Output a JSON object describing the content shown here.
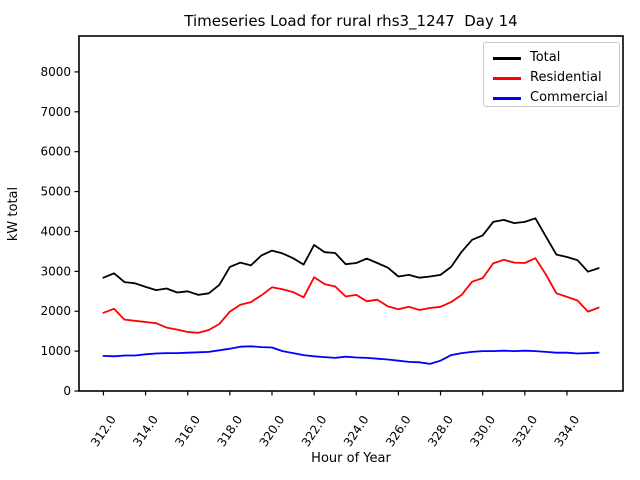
{
  "chart_data": {
    "type": "line",
    "title": "Timeseries Load for rural rhs3_1247  Day 14",
    "xlabel": "Hour of Year",
    "ylabel": "kW total",
    "xlim": [
      310.84,
      336.66
    ],
    "ylim": [
      0,
      8900
    ],
    "grid": false,
    "legend_position": "upper right",
    "xtick_values": [
      312,
      314,
      316,
      318,
      320,
      322,
      324,
      326,
      328,
      330,
      332,
      334
    ],
    "xtick_labels": [
      "312.0",
      "314.0",
      "316.0",
      "318.0",
      "320.0",
      "322.0",
      "324.0",
      "326.0",
      "328.0",
      "330.0",
      "332.0",
      "334.0"
    ],
    "ytick_values": [
      0,
      1000,
      2000,
      3000,
      4000,
      5000,
      6000,
      7000,
      8000
    ],
    "ytick_labels": [
      "0",
      "1000",
      "2000",
      "3000",
      "4000",
      "5000",
      "6000",
      "7000",
      "8000"
    ],
    "x": [
      312.0,
      312.5,
      313.0,
      313.5,
      314.0,
      314.5,
      315.0,
      315.5,
      316.0,
      316.5,
      317.0,
      317.5,
      318.0,
      318.5,
      319.0,
      319.5,
      320.0,
      320.5,
      321.0,
      321.5,
      322.0,
      322.5,
      323.0,
      323.5,
      324.0,
      324.5,
      325.0,
      325.5,
      326.0,
      326.5,
      327.0,
      327.5,
      328.0,
      328.5,
      329.0,
      329.5,
      330.0,
      330.5,
      331.0,
      331.5,
      332.0,
      332.5,
      333.0,
      333.5,
      334.0,
      334.5,
      335.0,
      335.5
    ],
    "series": [
      {
        "name": "Total",
        "color": "#000000",
        "values": [
          2840,
          2950,
          2730,
          2700,
          2610,
          2530,
          2570,
          2470,
          2500,
          2410,
          2450,
          2660,
          3110,
          3220,
          3150,
          3400,
          3520,
          3450,
          3330,
          3170,
          3660,
          3480,
          3460,
          3180,
          3210,
          3320,
          3210,
          3090,
          2870,
          2910,
          2840,
          2870,
          2910,
          3110,
          3490,
          3790,
          3900,
          4240,
          4290,
          4210,
          4240,
          4330,
          3870,
          3420,
          3360,
          3280,
          2990,
          3080
        ]
      },
      {
        "name": "Residential",
        "color": "#ff0000",
        "values": [
          1960,
          2060,
          1790,
          1760,
          1730,
          1700,
          1590,
          1540,
          1480,
          1460,
          1530,
          1680,
          1990,
          2160,
          2230,
          2400,
          2600,
          2550,
          2480,
          2350,
          2850,
          2680,
          2620,
          2370,
          2410,
          2250,
          2290,
          2120,
          2050,
          2110,
          2030,
          2080,
          2110,
          2230,
          2410,
          2740,
          2830,
          3200,
          3290,
          3220,
          3210,
          3330,
          2920,
          2450,
          2360,
          2270,
          1990,
          2090
        ]
      },
      {
        "name": "Commercial",
        "color": "#0000ff",
        "values": [
          880,
          870,
          890,
          890,
          920,
          940,
          950,
          950,
          960,
          970,
          980,
          1020,
          1060,
          1110,
          1120,
          1100,
          1090,
          1000,
          950,
          900,
          870,
          850,
          830,
          860,
          840,
          830,
          810,
          790,
          760,
          730,
          720,
          680,
          760,
          900,
          950,
          980,
          1000,
          1000,
          1010,
          1000,
          1010,
          1000,
          980,
          960,
          960,
          940,
          950,
          960
        ]
      }
    ]
  }
}
